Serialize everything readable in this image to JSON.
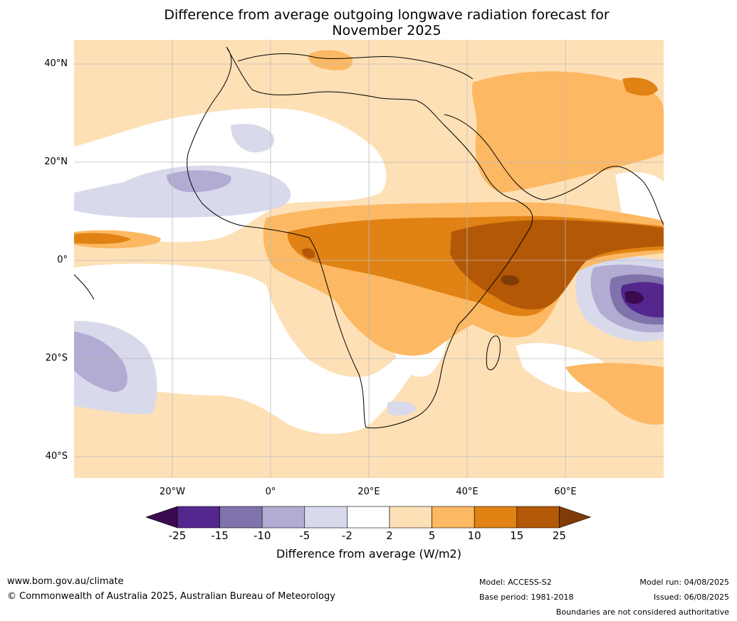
{
  "title_line1": "Difference from average outgoing longwave radiation forecast for",
  "title_line2": "November 2025",
  "axes": {
    "lat_labels": [
      "40°N",
      "20°N",
      "0°",
      "20°S",
      "40°S"
    ],
    "lon_labels": [
      "20°W",
      "0°",
      "20°E",
      "40°E",
      "60°E"
    ]
  },
  "colorbar": {
    "ticks": [
      "-25",
      "-15",
      "-10",
      "-5",
      "-2",
      "2",
      "5",
      "10",
      "15",
      "25"
    ],
    "colors": [
      "#3b0a4f",
      "#54278f",
      "#8073ac",
      "#b2abd2",
      "#d8daeb",
      "#ffffff",
      "#fee0b6",
      "#fdb863",
      "#e08214",
      "#b35806",
      "#7f3b08"
    ],
    "label": "Difference from average (W/m2)"
  },
  "footer": {
    "website": "www.bom.gov.au/climate",
    "copyright": "© Commonwealth of Australia 2025, Australian Bureau of Meteorology",
    "model": "Model: ACCESS-S2",
    "base_period": "Base period: 1981-2018",
    "model_run": "Model run: 04/08/2025",
    "issued": "Issued: 06/08/2025",
    "disclaimer": "Boundaries are not considered authoritative"
  }
}
